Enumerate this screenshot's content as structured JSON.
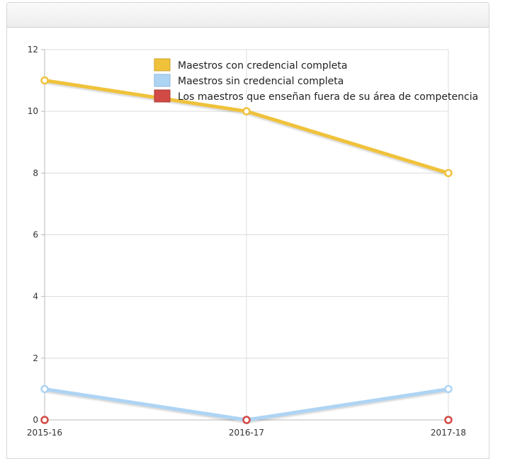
{
  "chart_data": {
    "type": "line",
    "categories": [
      "2015-16",
      "2016-17",
      "2017-18"
    ],
    "ylim": [
      0,
      12
    ],
    "yticks": [
      0,
      2,
      4,
      6,
      8,
      10,
      12
    ],
    "grid": true,
    "legend_position": "top",
    "series": [
      {
        "name": "Maestros con credencial completa",
        "values": [
          11,
          10,
          8
        ],
        "color": "#f0c23b",
        "swatch_border": "#c9a12f"
      },
      {
        "name": "Maestros sin credencial completa",
        "values": [
          1,
          0,
          1
        ],
        "color": "#aed4f4",
        "swatch_border": "#8fb6d6"
      },
      {
        "name": "Los maestros que enseñan fuera de su área de competencia",
        "values": [
          0,
          0,
          0
        ],
        "color": "#d24a45",
        "swatch_border": "#a93a36"
      }
    ]
  }
}
